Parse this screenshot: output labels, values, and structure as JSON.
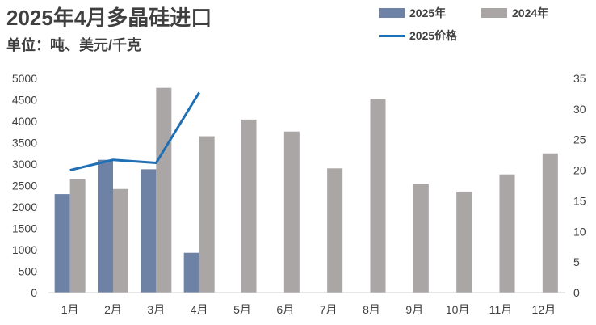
{
  "title": "2025年4月多晶硅进口",
  "subtitle": "单位：吨、美元/千克",
  "colors": {
    "series_2025": "#6e82a6",
    "series_2024": "#aaa6a6",
    "price_line": "#1f6fb5",
    "axis": "#d0d0d0",
    "text": "#404040"
  },
  "chart_data": {
    "type": "bar",
    "title": "2025年4月多晶硅进口",
    "subtitle": "单位：吨、美元/千克",
    "categories": [
      "1月",
      "2月",
      "3月",
      "4月",
      "5月",
      "6月",
      "7月",
      "8月",
      "9月",
      "10月",
      "11月",
      "12月"
    ],
    "series": [
      {
        "name": "2025年",
        "type": "bar",
        "axis": "left",
        "values": [
          2300,
          3100,
          2880,
          930,
          null,
          null,
          null,
          null,
          null,
          null,
          null,
          null
        ]
      },
      {
        "name": "2024年",
        "type": "bar",
        "axis": "left",
        "values": [
          2650,
          2420,
          4780,
          3650,
          4040,
          3760,
          2900,
          4520,
          2540,
          2360,
          2760,
          3250
        ]
      },
      {
        "name": "2025价格",
        "type": "line",
        "axis": "right",
        "values": [
          20.0,
          21.7,
          21.2,
          32.7,
          null,
          null,
          null,
          null,
          null,
          null,
          null,
          null
        ]
      }
    ],
    "yleft": {
      "ticks": [
        "0",
        "500",
        "1000",
        "1500",
        "2000",
        "2500",
        "3000",
        "3500",
        "4000",
        "4500",
        "5000"
      ],
      "ylim": [
        0,
        5000
      ]
    },
    "yright": {
      "ticks": [
        "0",
        "5",
        "10",
        "15",
        "20",
        "25",
        "30",
        "35"
      ],
      "ylim": [
        0,
        35
      ]
    },
    "legend": [
      "2025年",
      "2024年",
      "2025价格"
    ],
    "legend_position": "top-right",
    "grid": false
  }
}
